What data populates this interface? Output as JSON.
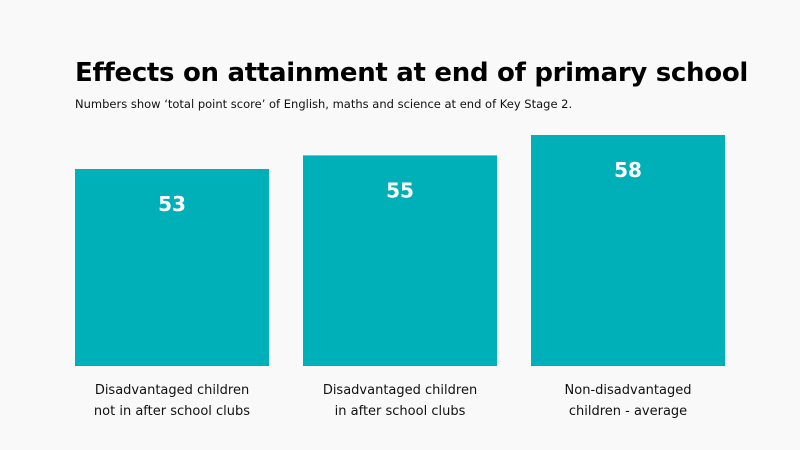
{
  "chart_data": {
    "type": "bar",
    "title": "Effects on attainment at end of primary school",
    "subtitle": "Numbers show ‘total point score’ of English, maths and science at end of Key Stage 2.",
    "categories": [
      [
        "Disadvantaged children",
        "not in after school clubs"
      ],
      [
        "Disadvantaged children",
        "in after school clubs"
      ],
      [
        "Non-disadvantaged",
        "children - average"
      ]
    ],
    "values": [
      53,
      55,
      58
    ],
    "data_labels": [
      "53",
      "55",
      "58"
    ],
    "grid": false,
    "bar_color": "#00b0b9",
    "label_color": "#ffffff",
    "text_color": "#111111"
  }
}
